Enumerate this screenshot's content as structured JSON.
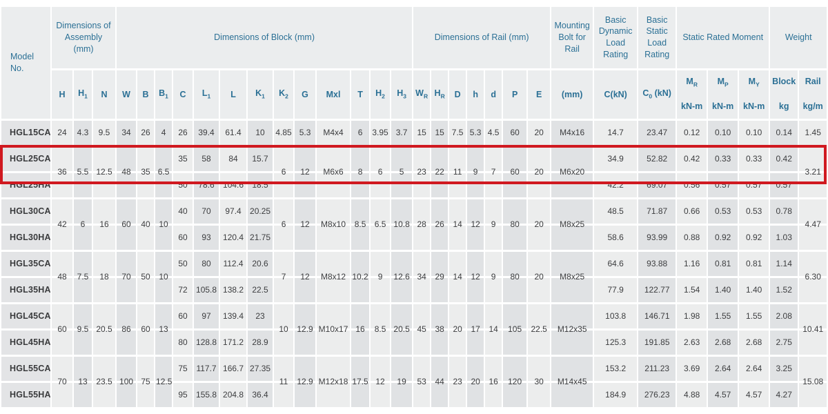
{
  "colors": {
    "header_text": "#2b7095",
    "body_text": "#3c3d3f",
    "stripe_light": "#eceded",
    "stripe_dark": "#e0e2e4",
    "model_bg": "#e3e4e6",
    "header_bg": "#ebedee",
    "highlight": "#d01920"
  },
  "header": {
    "model_no": "Model No.",
    "groups": {
      "assembly": "Dimensions of Assembly (mm)",
      "block": "Dimensions of Block (mm)",
      "rail": "Dimensions of Rail (mm)",
      "bolt": "Mounting Bolt for Rail",
      "dynamic": "Basic Dynamic Load Rating",
      "static": "Basic Static Load Rating",
      "moment": "Static Rated Moment",
      "weight": "Weight"
    },
    "symbols": [
      "H",
      "H_{1}",
      "N",
      "W",
      "B",
      "B_{1}",
      "C",
      "L_{1}",
      "L",
      "K_{1}",
      "K_{2}",
      "G",
      "Mxl",
      "T",
      "H_{2}",
      "H_{3}",
      "W_{R}",
      "H_{R}",
      "D",
      "h",
      "d",
      "P",
      "E"
    ],
    "bolt_unit": "(mm)",
    "dynamic_unit": "C(kN)",
    "static_unit": "C_{0} (kN)",
    "moment_cols": [
      {
        "sym": "M_{R}",
        "unit": "kN-m"
      },
      {
        "sym": "M_{P}",
        "unit": "kN-m"
      },
      {
        "sym": "M_{Y}",
        "unit": "kN-m"
      }
    ],
    "weight_cols": [
      {
        "sym": "Block",
        "unit": "kg"
      },
      {
        "sym": "Rail",
        "unit": "kg/m"
      }
    ]
  },
  "highlight": {
    "row": "HGL25CA",
    "color": "#d01920"
  },
  "rows": [
    {
      "model": "HGL15CA",
      "cells": [
        "24",
        "4.3",
        "9.5",
        "34",
        "26",
        "4",
        "26",
        "39.4",
        "61.4",
        "10",
        "4.85",
        "5.3",
        "M4x4",
        "6",
        "3.95",
        "3.7",
        "15",
        "15",
        "7.5",
        "5.3",
        "4.5",
        "60",
        "20",
        "M4x16",
        "14.7",
        "23.47",
        "0.12",
        "0.10",
        "0.10",
        "0.14",
        "1.45"
      ]
    },
    {
      "model": "HGL25CA",
      "cells": [
        {
          "v": "36",
          "rs": 2
        },
        {
          "v": "5.5",
          "rs": 2
        },
        {
          "v": "12.5",
          "rs": 2
        },
        {
          "v": "48",
          "rs": 2
        },
        {
          "v": "35",
          "rs": 2
        },
        {
          "v": "6.5",
          "rs": 2
        },
        "35",
        "58",
        "84",
        "15.7",
        {
          "v": "6",
          "rs": 2
        },
        {
          "v": "12",
          "rs": 2
        },
        {
          "v": "M6x6",
          "rs": 2
        },
        {
          "v": "8",
          "rs": 2
        },
        {
          "v": "6",
          "rs": 2
        },
        {
          "v": "5",
          "rs": 2
        },
        {
          "v": "23",
          "rs": 2
        },
        {
          "v": "22",
          "rs": 2
        },
        {
          "v": "11",
          "rs": 2
        },
        {
          "v": "9",
          "rs": 2
        },
        {
          "v": "7",
          "rs": 2
        },
        {
          "v": "60",
          "rs": 2
        },
        {
          "v": "20",
          "rs": 2
        },
        {
          "v": "M6x20",
          "rs": 2
        },
        "34.9",
        "52.82",
        "0.42",
        "0.33",
        "0.33",
        "0.42",
        {
          "v": "3.21",
          "rs": 2
        }
      ]
    },
    {
      "model": "HGL25HA",
      "cells": [
        "50",
        "78.6",
        "104.6",
        "18.5",
        "42.2",
        "69.07",
        "0.56",
        "0.57",
        "0.57",
        "0.57"
      ]
    },
    {
      "model": "HGL30CA",
      "cells": [
        {
          "v": "42",
          "rs": 2
        },
        {
          "v": "6",
          "rs": 2
        },
        {
          "v": "16",
          "rs": 2
        },
        {
          "v": "60",
          "rs": 2
        },
        {
          "v": "40",
          "rs": 2
        },
        {
          "v": "10",
          "rs": 2
        },
        "40",
        "70",
        "97.4",
        "20.25",
        {
          "v": "6",
          "rs": 2
        },
        {
          "v": "12",
          "rs": 2
        },
        {
          "v": "M8x10",
          "rs": 2
        },
        {
          "v": "8.5",
          "rs": 2
        },
        {
          "v": "6.5",
          "rs": 2
        },
        {
          "v": "10.8",
          "rs": 2
        },
        {
          "v": "28",
          "rs": 2
        },
        {
          "v": "26",
          "rs": 2
        },
        {
          "v": "14",
          "rs": 2
        },
        {
          "v": "12",
          "rs": 2
        },
        {
          "v": "9",
          "rs": 2
        },
        {
          "v": "80",
          "rs": 2
        },
        {
          "v": "20",
          "rs": 2
        },
        {
          "v": "M8x25",
          "rs": 2
        },
        "48.5",
        "71.87",
        "0.66",
        "0.53",
        "0.53",
        "0.78",
        {
          "v": "4.47",
          "rs": 2
        }
      ]
    },
    {
      "model": "HGL30HA",
      "cells": [
        "60",
        "93",
        "120.4",
        "21.75",
        "58.6",
        "93.99",
        "0.88",
        "0.92",
        "0.92",
        "1.03"
      ]
    },
    {
      "model": "HGL35CA",
      "cells": [
        {
          "v": "48",
          "rs": 2
        },
        {
          "v": "7.5",
          "rs": 2
        },
        {
          "v": "18",
          "rs": 2
        },
        {
          "v": "70",
          "rs": 2
        },
        {
          "v": "50",
          "rs": 2
        },
        {
          "v": "10",
          "rs": 2
        },
        "50",
        "80",
        "112.4",
        "20.6",
        {
          "v": "7",
          "rs": 2
        },
        {
          "v": "12",
          "rs": 2
        },
        {
          "v": "M8x12",
          "rs": 2
        },
        {
          "v": "10.2",
          "rs": 2
        },
        {
          "v": "9",
          "rs": 2
        },
        {
          "v": "12.6",
          "rs": 2
        },
        {
          "v": "34",
          "rs": 2
        },
        {
          "v": "29",
          "rs": 2
        },
        {
          "v": "14",
          "rs": 2
        },
        {
          "v": "12",
          "rs": 2
        },
        {
          "v": "9",
          "rs": 2
        },
        {
          "v": "80",
          "rs": 2
        },
        {
          "v": "20",
          "rs": 2
        },
        {
          "v": "M8x25",
          "rs": 2
        },
        "64.6",
        "93.88",
        "1.16",
        "0.81",
        "0.81",
        "1.14",
        {
          "v": "6.30",
          "rs": 2
        }
      ]
    },
    {
      "model": "HGL35HA",
      "cells": [
        "72",
        "105.8",
        "138.2",
        "22.5",
        "77.9",
        "122.77",
        "1.54",
        "1.40",
        "1.40",
        "1.52"
      ]
    },
    {
      "model": "HGL45CA",
      "cells": [
        {
          "v": "60",
          "rs": 2
        },
        {
          "v": "9.5",
          "rs": 2
        },
        {
          "v": "20.5",
          "rs": 2
        },
        {
          "v": "86",
          "rs": 2
        },
        {
          "v": "60",
          "rs": 2
        },
        {
          "v": "13",
          "rs": 2
        },
        "60",
        "97",
        "139.4",
        "23",
        {
          "v": "10",
          "rs": 2
        },
        {
          "v": "12.9",
          "rs": 2
        },
        {
          "v": "M10x17",
          "rs": 2
        },
        {
          "v": "16",
          "rs": 2
        },
        {
          "v": "8.5",
          "rs": 2
        },
        {
          "v": "20.5",
          "rs": 2
        },
        {
          "v": "45",
          "rs": 2
        },
        {
          "v": "38",
          "rs": 2
        },
        {
          "v": "20",
          "rs": 2
        },
        {
          "v": "17",
          "rs": 2
        },
        {
          "v": "14",
          "rs": 2
        },
        {
          "v": "105",
          "rs": 2
        },
        {
          "v": "22.5",
          "rs": 2
        },
        {
          "v": "M12x35",
          "rs": 2
        },
        "103.8",
        "146.71",
        "1.98",
        "1.55",
        "1.55",
        "2.08",
        {
          "v": "10.41",
          "rs": 2
        }
      ]
    },
    {
      "model": "HGL45HA",
      "cells": [
        "80",
        "128.8",
        "171.2",
        "28.9",
        "125.3",
        "191.85",
        "2.63",
        "2.68",
        "2.68",
        "2.75"
      ]
    },
    {
      "model": "HGL55CA",
      "cells": [
        {
          "v": "70",
          "rs": 2
        },
        {
          "v": "13",
          "rs": 2
        },
        {
          "v": "23.5",
          "rs": 2
        },
        {
          "v": "100",
          "rs": 2
        },
        {
          "v": "75",
          "rs": 2
        },
        {
          "v": "12.5",
          "rs": 2
        },
        "75",
        "117.7",
        "166.7",
        "27.35",
        {
          "v": "11",
          "rs": 2
        },
        {
          "v": "12.9",
          "rs": 2
        },
        {
          "v": "M12x18",
          "rs": 2
        },
        {
          "v": "17.5",
          "rs": 2
        },
        {
          "v": "12",
          "rs": 2
        },
        {
          "v": "19",
          "rs": 2
        },
        {
          "v": "53",
          "rs": 2
        },
        {
          "v": "44",
          "rs": 2
        },
        {
          "v": "23",
          "rs": 2
        },
        {
          "v": "20",
          "rs": 2
        },
        {
          "v": "16",
          "rs": 2
        },
        {
          "v": "120",
          "rs": 2
        },
        {
          "v": "30",
          "rs": 2
        },
        {
          "v": "M14x45",
          "rs": 2
        },
        "153.2",
        "211.23",
        "3.69",
        "2.64",
        "2.64",
        "3.25",
        {
          "v": "15.08",
          "rs": 2
        }
      ]
    },
    {
      "model": "HGL55HA",
      "cells": [
        "95",
        "155.8",
        "204.8",
        "36.4",
        "184.9",
        "276.23",
        "4.88",
        "4.57",
        "4.57",
        "4.27"
      ]
    }
  ]
}
